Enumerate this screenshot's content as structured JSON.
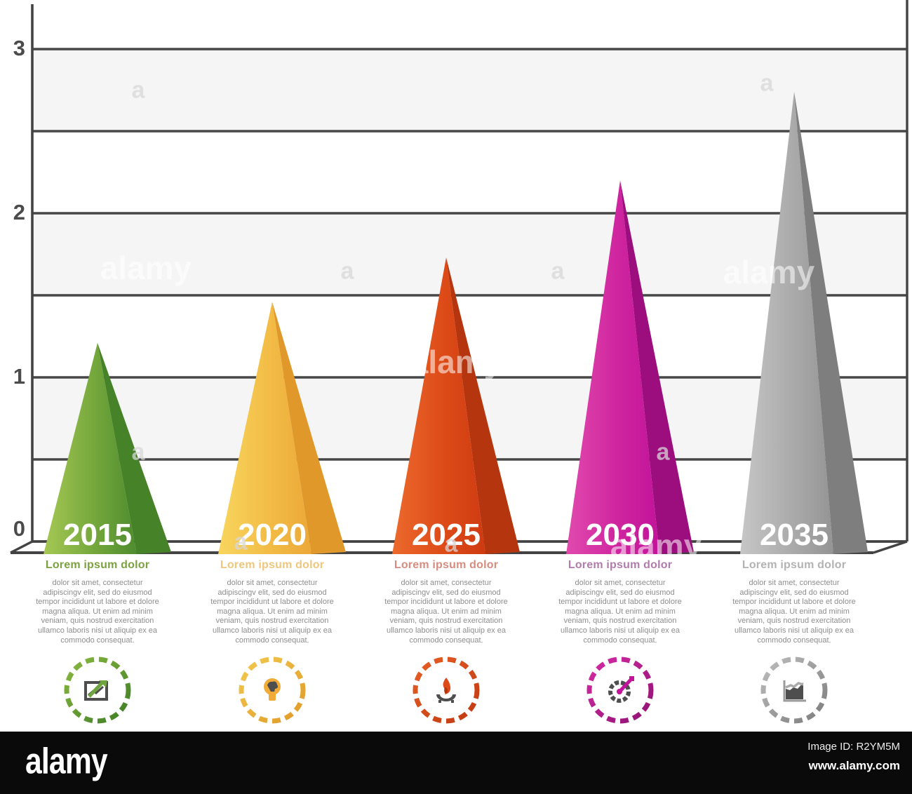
{
  "chart_data": {
    "type": "bar",
    "subtype": "3d-cone-pictorial",
    "title": "",
    "categories": [
      "2015",
      "2020",
      "2025",
      "2030",
      "2035"
    ],
    "values": [
      1.21,
      1.46,
      1.73,
      2.2,
      2.74
    ],
    "ylim": [
      0,
      3
    ],
    "yticks": [
      0,
      1,
      2,
      3
    ],
    "ytick_labels": [
      "0",
      "1",
      "2",
      "3"
    ],
    "minor_grid_step": 0.5,
    "grid": true,
    "legend": "none",
    "band_color": "#f5f5f5",
    "grid_color": "#474747",
    "axis_color": "#434343",
    "tick_label_color": "#4b4b4b",
    "category_label_color": "#ffffff",
    "series_colors": [
      {
        "light": "#a6c854",
        "mid": "#74a73c",
        "dark": "#4e8c2e",
        "side": "#468228"
      },
      {
        "light": "#f8d65f",
        "mid": "#f2bc46",
        "dark": "#ecA837",
        "side": "#e1982b"
      },
      {
        "light": "#ec6a2d",
        "mid": "#dd4b18",
        "dark": "#cf3b11",
        "side": "#b5350f"
      },
      {
        "light": "#e14aae",
        "mid": "#cf259f",
        "dark": "#c2139a",
        "side": "#9c0e7d"
      },
      {
        "light": "#c6c6c6",
        "mid": "#ababab",
        "dark": "#949494",
        "side": "#7e7e7e"
      }
    ]
  },
  "columns": [
    {
      "heading": "Lorem ipsum dolor",
      "heading_color": "#7ba23f",
      "ring_color_a": "#8ab93f",
      "ring_color_b": "#3f7d26",
      "icon": "photo-chart-icon",
      "accent": "#6da53c",
      "body": "dolor sit amet, consectetur adipiscingv elit, sed do eiusmod tempor incididunt ut labore et dolore magna aliqua. Ut enim ad minim veniam, quis nostrud exercitation ullamco laboris nisi ut aliquip ex ea commodo consequat."
    },
    {
      "heading": "Lorem ipsum dolor",
      "heading_color": "#eec77d",
      "ring_color_a": "#f3c84f",
      "ring_color_b": "#e09a28",
      "icon": "lightbulb-icon",
      "accent": "#f0ab39",
      "body": "dolor sit amet, consectetur adipiscingv elit, sed do eiusmod tempor incididunt ut labore et dolore magna aliqua. Ut enim ad minim veniam, quis nostrud exercitation ullamco laboris nisi ut aliquip ex ea commodo consequat."
    },
    {
      "heading": "Lorem ipsum dolor",
      "heading_color": "#d68d80",
      "ring_color_a": "#e75e24",
      "ring_color_b": "#c03a12",
      "icon": "flame-hand-icon",
      "accent": "#dd4b18",
      "body": "dolor sit amet, consectetur adipiscingv elit, sed do eiusmod tempor incididunt ut labore et dolore magna aliqua. Ut enim ad minim veniam, quis nostrud exercitation ullamco laboris nisi ut aliquip ex ea commodo consequat."
    },
    {
      "heading": "Lorem ipsum dolor",
      "heading_color": "#b17cab",
      "ring_color_a": "#d62ba5",
      "ring_color_b": "#8e1272",
      "icon": "target-arrow-icon",
      "accent": "#c2139a",
      "body": "dolor sit amet, consectetur adipiscingv elit, sed do eiusmod tempor incididunt ut labore et dolore magna aliqua. Ut enim ad minim veniam, quis nostrud exercitation ullamco laboris nisi ut aliquip ex ea commodo consequat."
    },
    {
      "heading": "Lorem ipsum dolor",
      "heading_color": "#b3b3b3",
      "ring_color_a": "#bdbdbd",
      "ring_color_b": "#7d7d7d",
      "icon": "area-chart-icon",
      "accent": "#9a9a9a",
      "body": "dolor sit amet, consectetur adipiscingv elit, sed do eiusmod tempor incididunt ut labore et dolore magna aliqua. Ut enim ad minim veniam, quis nostrud exercitation ullamco laboris nisi ut aliquip ex ea commodo consequat."
    }
  ],
  "watermark": {
    "brand_text": "alamy",
    "small_mark": "a"
  },
  "footer": {
    "logo": "alamy",
    "image_id": "Image ID: R2YM5M",
    "url": "www.alamy.com"
  }
}
